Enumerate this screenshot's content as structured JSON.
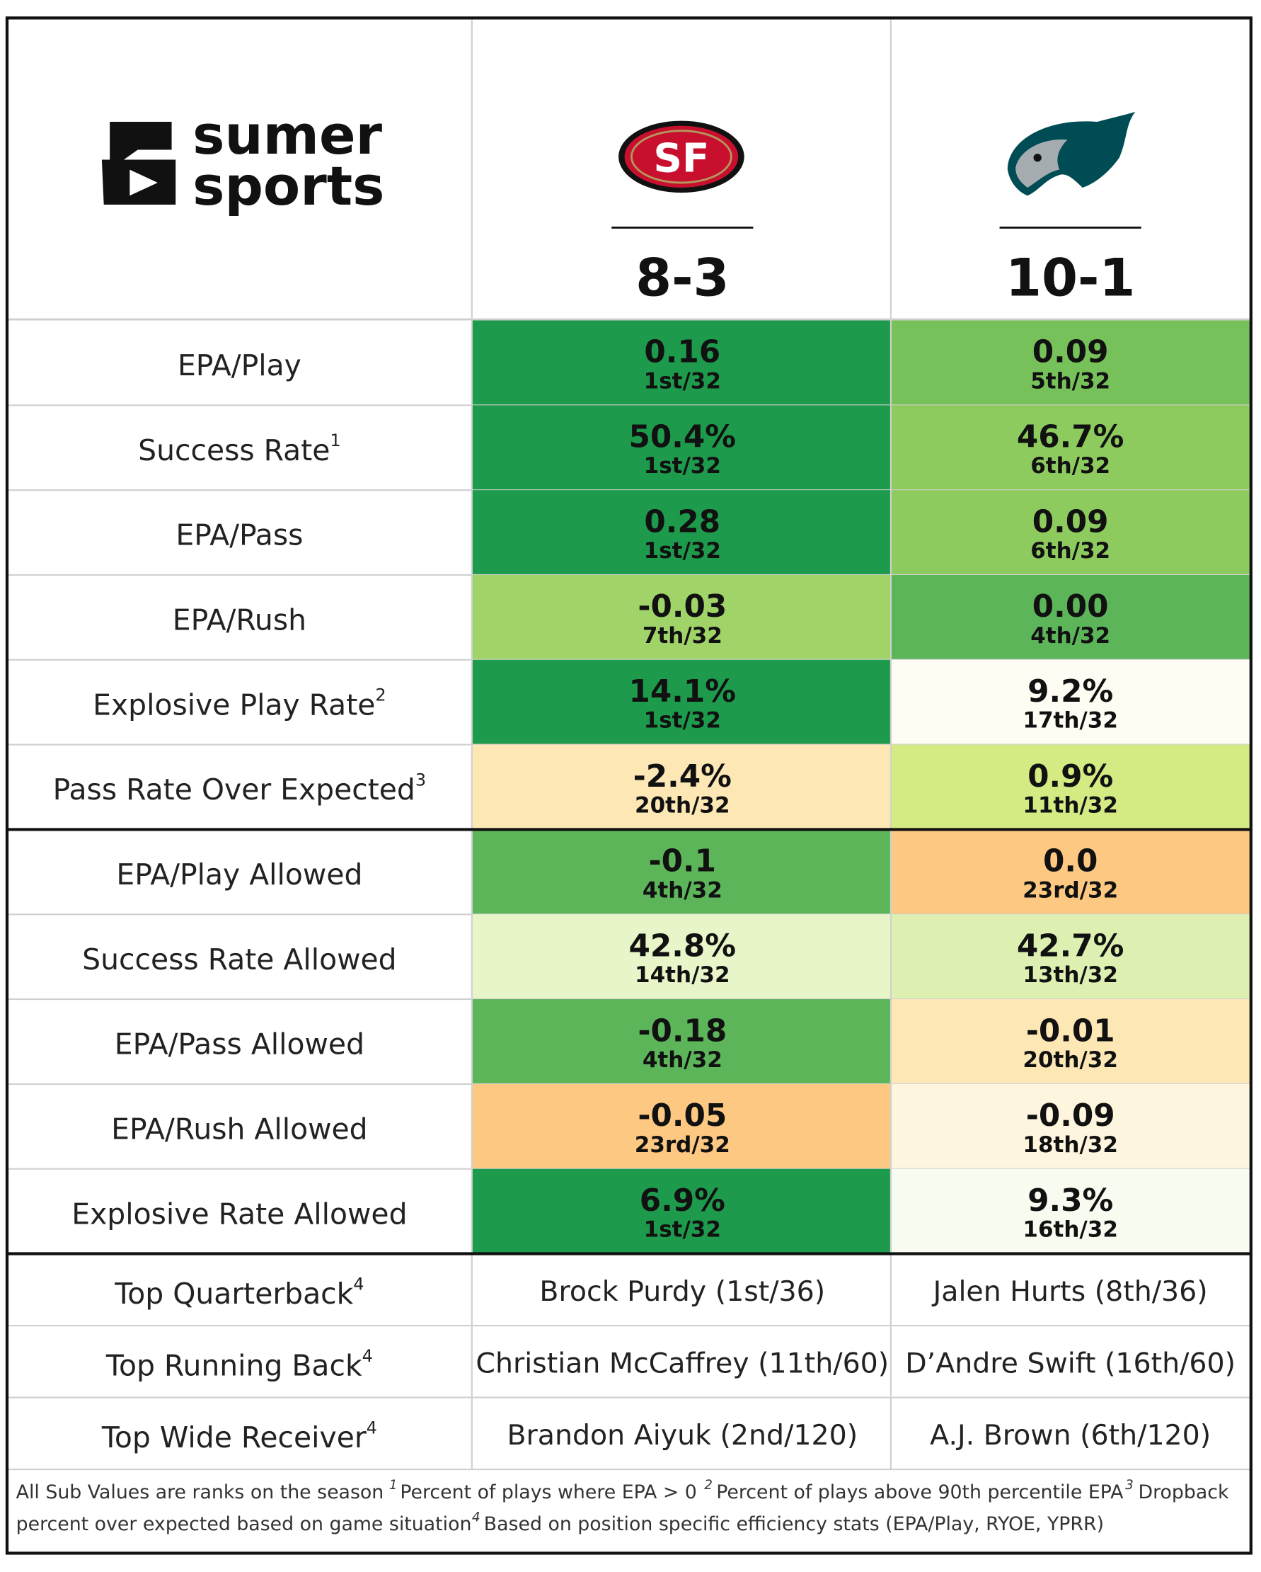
{
  "header": {
    "logo_line1": "sumer",
    "logo_line2": "sports",
    "teams": [
      {
        "record": "8-3"
      },
      {
        "record": "10-1"
      }
    ]
  },
  "offense_rows": [
    {
      "label": "EPA/Play",
      "cells": [
        {
          "value": "0.16",
          "rank": "1st/32",
          "color": "#1e9a4c"
        },
        {
          "value": "0.09",
          "rank": "5th/32",
          "color": "#76c15a"
        }
      ]
    },
    {
      "label": "Success Rate",
      "note": "1",
      "cells": [
        {
          "value": "50.4%",
          "rank": "1st/32",
          "color": "#1e9a4c"
        },
        {
          "value": "46.7%",
          "rank": "6th/32",
          "color": "#8ecb5f"
        }
      ]
    },
    {
      "label": "EPA/Pass",
      "cells": [
        {
          "value": "0.28",
          "rank": "1st/32",
          "color": "#1e9a4c"
        },
        {
          "value": "0.09",
          "rank": "6th/32",
          "color": "#8ecb5f"
        }
      ]
    },
    {
      "label": "EPA/Rush",
      "cells": [
        {
          "value": "-0.03",
          "rank": "7th/32",
          "color": "#a1d468"
        },
        {
          "value": "0.00",
          "rank": "4th/32",
          "color": "#5db55a"
        }
      ]
    },
    {
      "label": "Explosive Play Rate",
      "note": "2",
      "cells": [
        {
          "value": "14.1%",
          "rank": "1st/32",
          "color": "#1e9a4c"
        },
        {
          "value": "9.2%",
          "rank": "17th/32",
          "color": "#fffcf3"
        }
      ]
    },
    {
      "label": "Pass Rate Over Expected",
      "note": "3",
      "cells": [
        {
          "value": "-2.4%",
          "rank": "20th/32",
          "color": "#fde7b5"
        },
        {
          "value": "0.9%",
          "rank": "11th/32",
          "color": "#d4ea83"
        }
      ]
    }
  ],
  "defense_rows": [
    {
      "label": "EPA/Play Allowed",
      "cells": [
        {
          "value": "-0.1",
          "rank": "4th/32",
          "color": "#5db55a"
        },
        {
          "value": "0.0",
          "rank": "23rd/32",
          "color": "#fdc882"
        }
      ]
    },
    {
      "label": "Success Rate Allowed",
      "cells": [
        {
          "value": "42.8%",
          "rank": "14th/32",
          "color": "#e8f5c8"
        },
        {
          "value": "42.7%",
          "rank": "13th/32",
          "color": "#ddf0b2"
        }
      ]
    },
    {
      "label": "EPA/Pass Allowed",
      "cells": [
        {
          "value": "-0.18",
          "rank": "4th/32",
          "color": "#5db55a"
        },
        {
          "value": "-0.01",
          "rank": "20th/32",
          "color": "#fde7b5"
        }
      ]
    },
    {
      "label": "EPA/Rush Allowed",
      "cells": [
        {
          "value": "-0.05",
          "rank": "23rd/32",
          "color": "#fdc882"
        },
        {
          "value": "-0.09",
          "rank": "18th/32",
          "color": "#fdf5dd"
        }
      ]
    },
    {
      "label": "Explosive Rate Allowed",
      "cells": [
        {
          "value": "6.9%",
          "rank": "1st/32",
          "color": "#1e9a4c"
        },
        {
          "value": "9.3%",
          "rank": "16th/32",
          "color": "#f8fbf0"
        }
      ]
    }
  ],
  "players": [
    {
      "label": "Top Quarterback",
      "note": "4",
      "cells": [
        "Brock Purdy (1st/36)",
        "Jalen Hurts (8th/36)"
      ]
    },
    {
      "label": "Top Running Back",
      "note": "4",
      "cells": [
        "Christian McCaffrey (11th/60)",
        "D’Andre Swift (16th/60)"
      ]
    },
    {
      "label": "Top Wide Receiver",
      "note": "4",
      "cells": [
        "Brandon Aiyuk (2nd/120)",
        "A.J. Brown (6th/120)"
      ]
    }
  ],
  "footnotes": {
    "intro": "All Sub Values are ranks on the season",
    "notes": [
      {
        "marker": "1",
        "lines": [
          "Percent of plays where EPA > 0"
        ]
      },
      {
        "marker": "2",
        "lines": [
          "Percent of plays above 90th percentile EPA"
        ]
      },
      {
        "marker": "3",
        "lines": [
          "Dropback",
          "percent over expected based on game situation"
        ]
      },
      {
        "marker": "4",
        "lines": [
          "Based on position specific efficiency stats (EPA/Play, RYOE, YPRR)"
        ]
      }
    ]
  }
}
